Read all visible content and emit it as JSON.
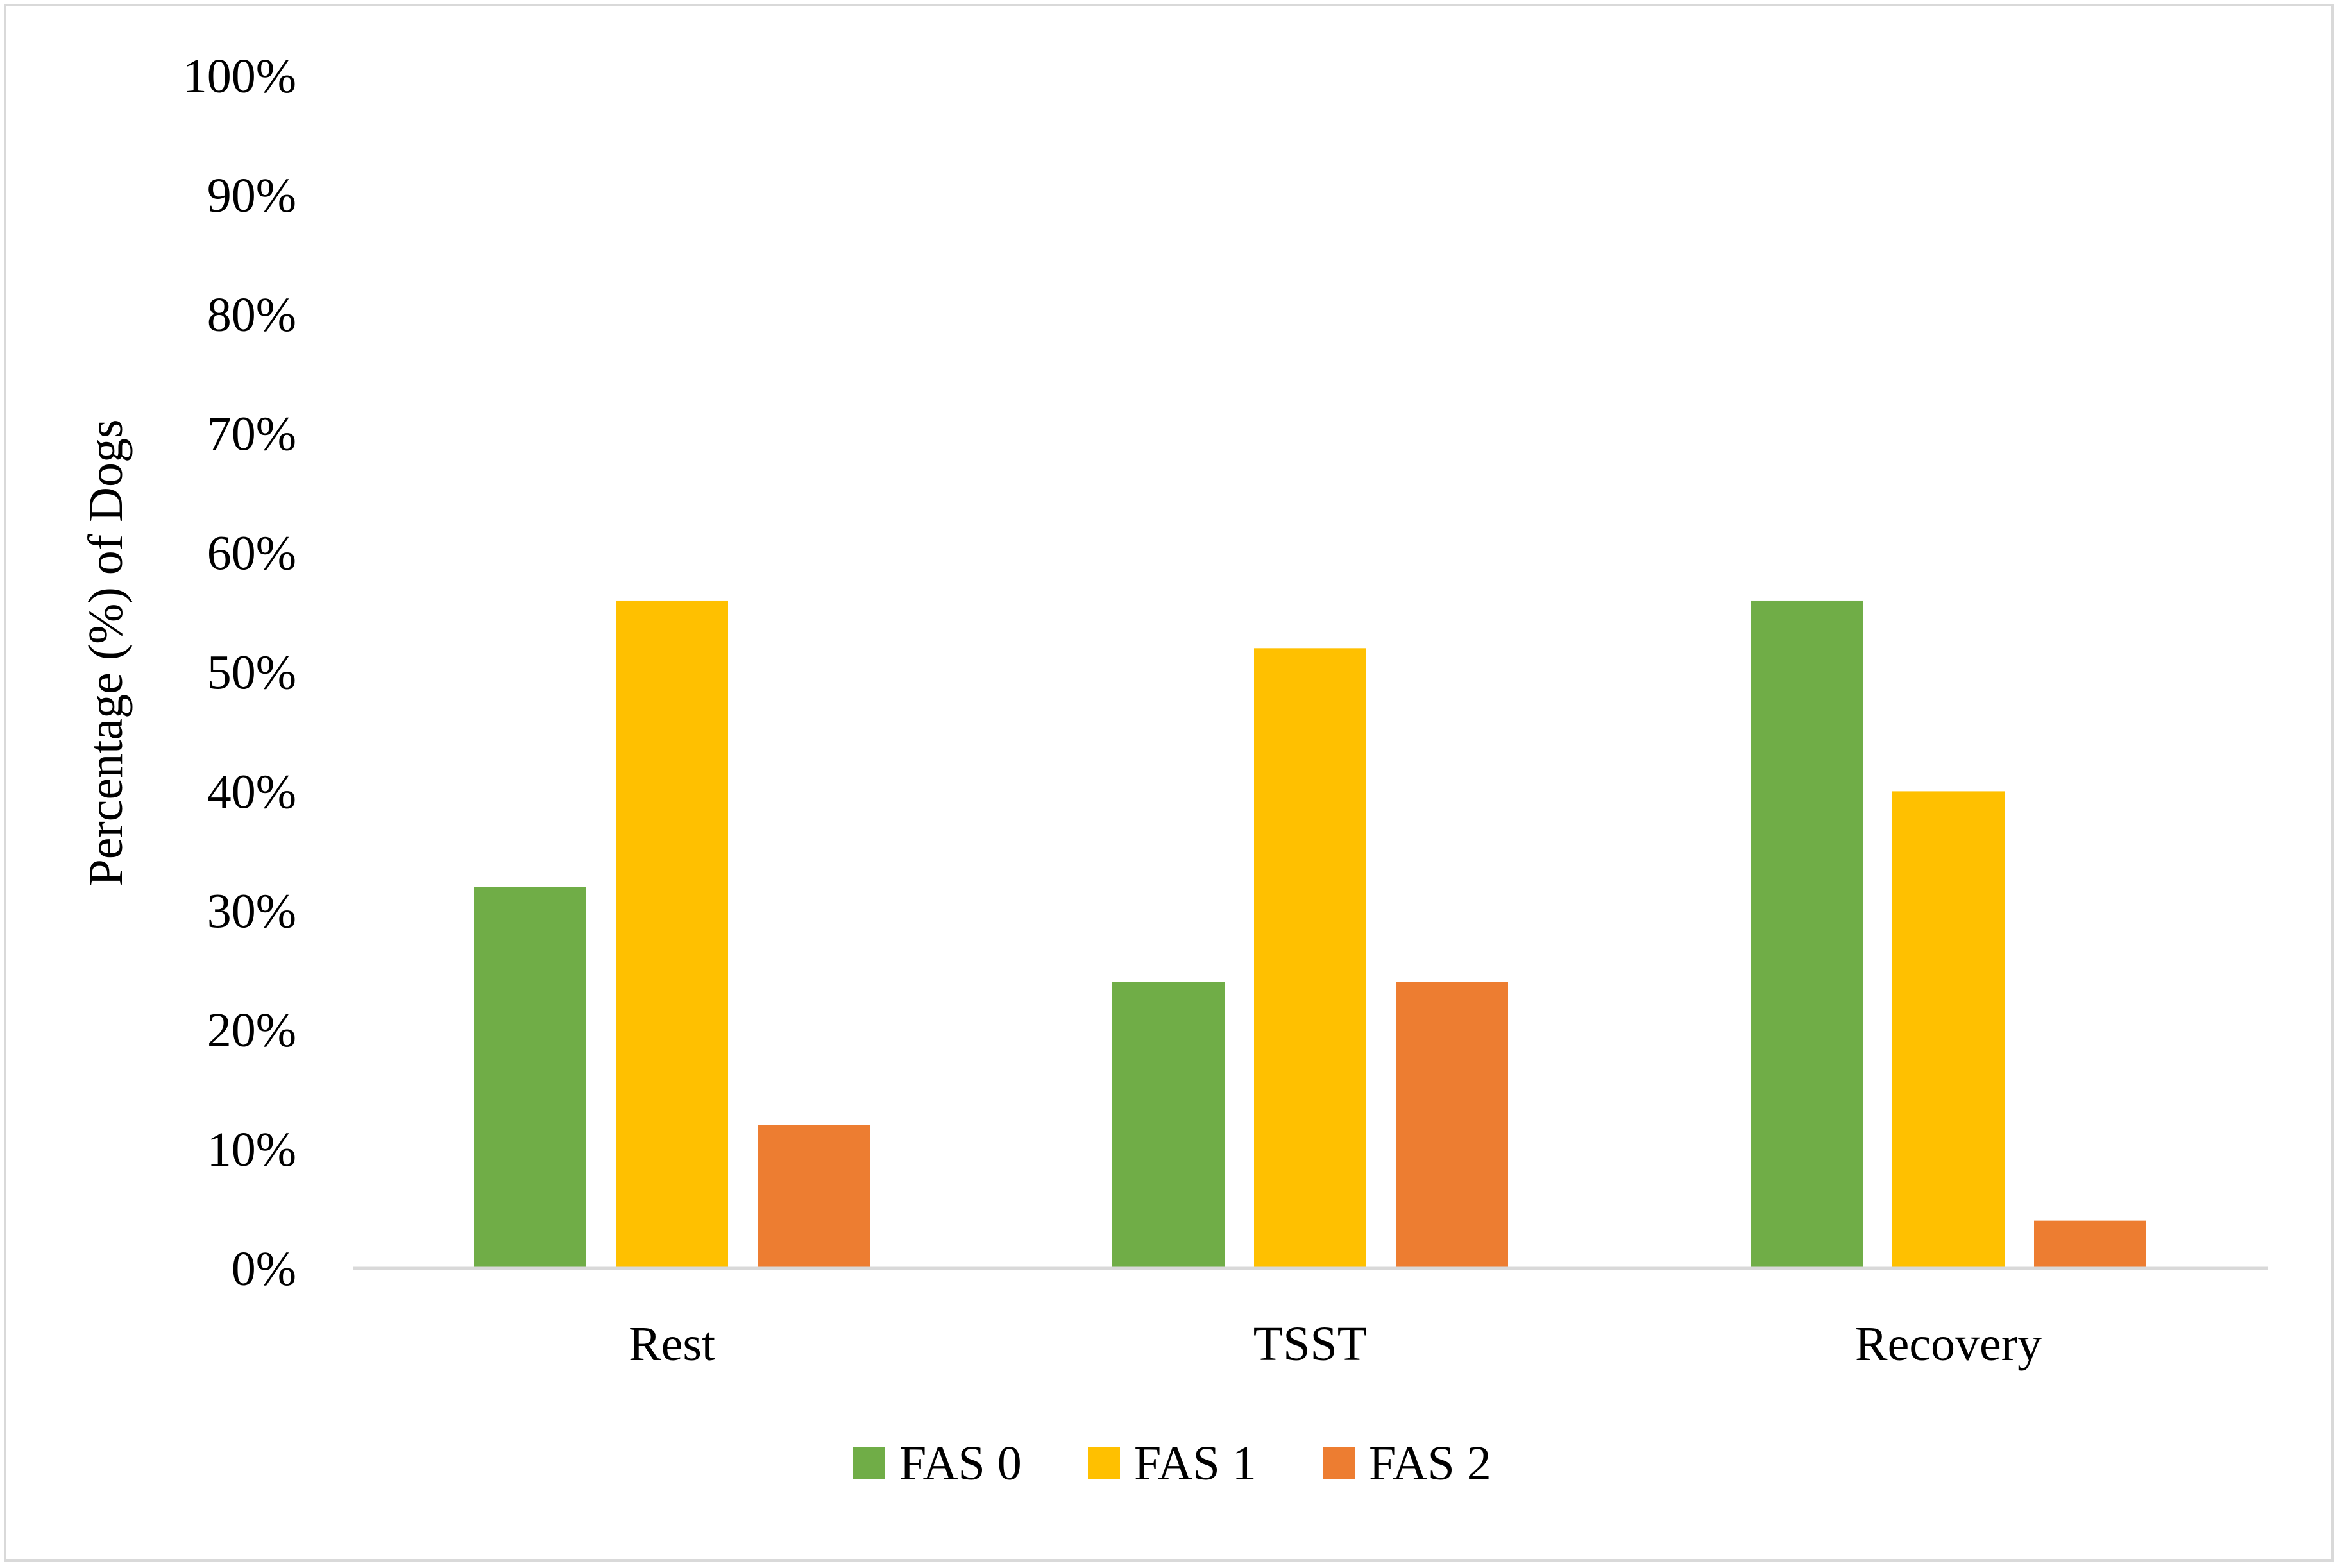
{
  "chart_data": {
    "type": "bar",
    "categories": [
      "Rest",
      "TSST",
      "Recovery"
    ],
    "series": [
      {
        "name": "FAS 0",
        "color": "#70ad47",
        "values": [
          32,
          24,
          56
        ]
      },
      {
        "name": "FAS 1",
        "color": "#ffc000",
        "values": [
          56,
          52,
          40
        ]
      },
      {
        "name": "FAS 2",
        "color": "#ed7d31",
        "values": [
          12,
          24,
          4
        ]
      }
    ],
    "ylabel": "Percentage (%) of Dogs",
    "ylim": [
      0,
      100
    ],
    "yticks": [
      0,
      10,
      20,
      30,
      40,
      50,
      60,
      70,
      80,
      90,
      100
    ],
    "ytick_labels": [
      "0%",
      "10%",
      "20%",
      "30%",
      "40%",
      "50%",
      "60%",
      "70%",
      "80%",
      "90%",
      "100%"
    ],
    "grid": false,
    "legend": "bottom"
  }
}
